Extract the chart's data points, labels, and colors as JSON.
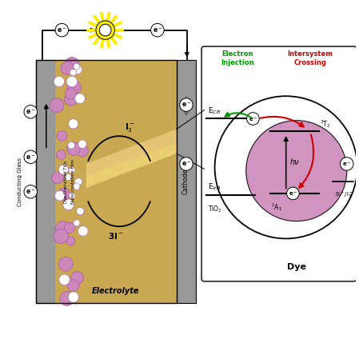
{
  "bg_color": "#ffffff",
  "electrolyte_color": "#c8a850",
  "electrolyte_light_color": "#e8c87a",
  "conducting_glass_color": "#999999",
  "dye_film_pink_color": "#cc88bb",
  "cathode_color": "#999999",
  "dye_circle_color": "#cc88bb",
  "sun_yellow": "#ffee00",
  "green_color": "#009900",
  "red_color": "#cc0000",
  "black_color": "#000000",
  "ecb_label": "E$_{CB}$",
  "evb_label": "E$_{VB}$",
  "tio2_label": "TiO$_2$",
  "dye_label": "Dye",
  "i3_label": "I$_3^-$",
  "3i_label": "3I$^-$",
  "3i_i3_label": "3I$^-$/I$_3^-$",
  "hv_label": "hν",
  "t2_label": "$^3$T$_2$",
  "a1_label": "$^1$A$_1$",
  "electron_injection_label": "Electron\nInjection",
  "intersystem_crossing_label": "Intersystem\nCrossing",
  "conducting_glass_label": "Conducting Glass",
  "dye_film_label": "Dye-Derivitzed TiO$_2$\nNanocrystalline Film",
  "electrolyte_label": "Electrolyte",
  "cathode_label": "Cathode"
}
